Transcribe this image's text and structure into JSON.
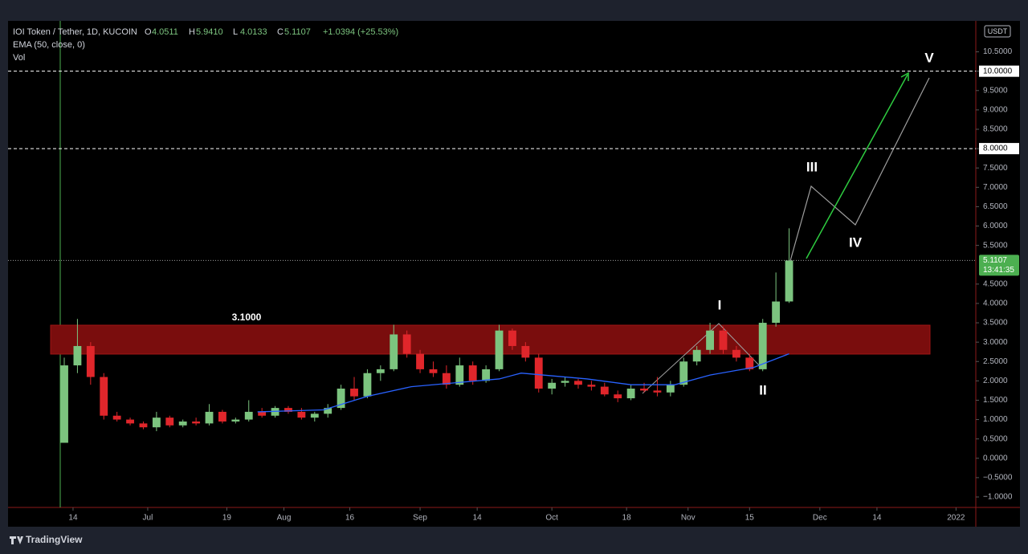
{
  "chart_data": {
    "type": "candlestick",
    "symbol": "IOI Token / Tether, 1D, KUCOIN",
    "ohlc_legend": [
      {
        "key": "O",
        "value": "4.0511"
      },
      {
        "key": "H",
        "value": "5.9410"
      },
      {
        "key": "L",
        "value": "4.0133"
      },
      {
        "key": "C",
        "value": "5.1107"
      }
    ],
    "change": "+1.0394 (+25.53%)",
    "indicators": [
      "EMA (50, close, 0)",
      "Vol"
    ],
    "currency": "USDT",
    "up_color": "#7cc47f",
    "down_color": "#e0262b",
    "x": [
      11,
      14,
      17,
      20,
      23,
      26,
      29,
      32,
      35,
      38,
      41,
      44,
      47,
      50,
      53,
      56,
      59,
      62,
      65,
      68,
      71,
      74,
      77,
      80,
      83,
      86,
      89,
      92,
      95,
      98,
      101,
      104,
      107,
      110,
      113,
      116,
      119,
      122,
      125,
      128,
      131,
      134,
      137,
      140,
      143,
      146,
      149,
      152,
      155,
      158,
      161,
      164,
      167,
      170,
      173,
      176
    ],
    "open": [
      0.4,
      2.4,
      2.9,
      2.1,
      1.1,
      1.0,
      0.9,
      0.8,
      1.05,
      0.85,
      0.95,
      0.9,
      1.2,
      0.95,
      1.0,
      1.2,
      1.1,
      1.3,
      1.2,
      1.05,
      1.15,
      1.3,
      1.8,
      1.6,
      2.2,
      2.3,
      3.2,
      2.7,
      2.3,
      2.2,
      1.9,
      2.4,
      2.0,
      2.3,
      3.3,
      2.9,
      2.6,
      1.8,
      1.95,
      2.0,
      1.9,
      1.85,
      1.65,
      1.55,
      1.8,
      1.75,
      1.7,
      1.9,
      2.5,
      2.8,
      3.3,
      2.8,
      2.6,
      2.3,
      3.5,
      4.0511
    ],
    "high": [
      2.6,
      3.6,
      3.0,
      2.2,
      1.2,
      1.05,
      0.95,
      1.2,
      1.1,
      1.0,
      1.05,
      1.4,
      1.25,
      1.05,
      1.5,
      1.3,
      1.35,
      1.35,
      1.3,
      1.2,
      1.4,
      1.9,
      2.1,
      2.3,
      2.4,
      3.45,
      3.3,
      2.8,
      2.5,
      2.4,
      2.6,
      2.5,
      2.4,
      3.45,
      3.35,
      3.0,
      2.7,
      2.05,
      2.1,
      2.05,
      2.0,
      1.95,
      1.75,
      1.9,
      1.95,
      2.1,
      2.0,
      2.6,
      2.9,
      3.5,
      3.4,
      2.9,
      2.7,
      3.6,
      4.8,
      5.941
    ],
    "low": [
      0.4,
      2.2,
      1.9,
      1.0,
      0.95,
      0.85,
      0.75,
      0.7,
      0.8,
      0.8,
      0.85,
      0.85,
      0.9,
      0.9,
      0.95,
      1.05,
      1.05,
      1.15,
      1.0,
      0.95,
      1.05,
      1.25,
      1.5,
      1.55,
      2.0,
      2.25,
      2.6,
      2.2,
      2.1,
      1.8,
      1.85,
      1.9,
      1.95,
      2.25,
      2.8,
      2.5,
      1.7,
      1.65,
      1.85,
      1.8,
      1.75,
      1.6,
      1.45,
      1.5,
      1.7,
      1.6,
      1.6,
      1.85,
      2.4,
      2.7,
      2.7,
      2.5,
      2.25,
      2.25,
      3.4,
      4.0133
    ],
    "close": [
      2.4,
      2.9,
      2.1,
      1.1,
      1.0,
      0.9,
      0.8,
      1.05,
      0.85,
      0.95,
      0.9,
      1.2,
      0.95,
      1.0,
      1.2,
      1.1,
      1.3,
      1.2,
      1.05,
      1.15,
      1.3,
      1.8,
      1.6,
      2.2,
      2.3,
      3.2,
      2.7,
      2.3,
      2.2,
      1.9,
      2.4,
      2.0,
      2.3,
      3.3,
      2.9,
      2.6,
      1.8,
      1.95,
      2.0,
      1.9,
      1.85,
      1.65,
      1.55,
      1.8,
      1.75,
      1.7,
      1.9,
      2.5,
      2.8,
      3.3,
      2.8,
      2.6,
      2.3,
      3.5,
      4.05,
      5.1107
    ],
    "ema": {
      "color": "#2962ff",
      "x": [
        55,
        70,
        80,
        90,
        100,
        110,
        115,
        130,
        140,
        150,
        158,
        168,
        176
      ],
      "values": [
        1.2,
        1.25,
        1.6,
        1.85,
        1.95,
        2.05,
        2.2,
        2.05,
        1.9,
        1.9,
        2.15,
        2.35,
        2.7
      ]
    },
    "xlim": [
      -1.8,
      218.5
    ],
    "xticks": [
      {
        "value": 13,
        "label": "14"
      },
      {
        "value": 30,
        "label": "Jul"
      },
      {
        "value": 48,
        "label": "19"
      },
      {
        "value": 61,
        "label": "Aug"
      },
      {
        "value": 76,
        "label": "16"
      },
      {
        "value": 92,
        "label": "Sep"
      },
      {
        "value": 105,
        "label": "14"
      },
      {
        "value": 122,
        "label": "Oct"
      },
      {
        "value": 139,
        "label": "18"
      },
      {
        "value": 153,
        "label": "Nov"
      },
      {
        "value": 167,
        "label": "15"
      },
      {
        "value": 183,
        "label": "Dec"
      },
      {
        "value": 196,
        "label": "14"
      },
      {
        "value": 214,
        "label": "2022"
      }
    ],
    "ylim": [
      -1.27,
      11.3
    ],
    "yticks": [
      {
        "value": -1,
        "label": "−1.0000"
      },
      {
        "value": -0.5,
        "label": "−0.5000"
      },
      {
        "value": 0,
        "label": "0.0000"
      },
      {
        "value": 0.5,
        "label": "0.5000"
      },
      {
        "value": 1,
        "label": "1.0000"
      },
      {
        "value": 1.5,
        "label": "1.5000"
      },
      {
        "value": 2,
        "label": "2.0000"
      },
      {
        "value": 2.5,
        "label": "2.5000"
      },
      {
        "value": 3,
        "label": "3.0000"
      },
      {
        "value": 3.5,
        "label": "3.5000"
      },
      {
        "value": 4,
        "label": "4.0000"
      },
      {
        "value": 4.5,
        "label": "4.5000"
      },
      {
        "value": 5.5,
        "label": "5.5000"
      },
      {
        "value": 6,
        "label": "6.0000"
      },
      {
        "value": 6.5,
        "label": "6.5000"
      },
      {
        "value": 7,
        "label": "7.0000"
      },
      {
        "value": 7.5,
        "label": "7.5000"
      },
      {
        "value": 8,
        "label": "8.0000"
      },
      {
        "value": 8.5,
        "label": "8.5000"
      },
      {
        "value": 9,
        "label": "9.0000"
      },
      {
        "value": 9.5,
        "label": "9.5000"
      },
      {
        "value": 10,
        "label": "10.0000"
      },
      {
        "value": 10.5,
        "label": "10.5000"
      }
    ],
    "highlight_levels": [
      10,
      8
    ],
    "last_price": {
      "value": 5.1107,
      "label": "5.1107"
    },
    "countdown": "13:41:35",
    "zone_label": "3.1000",
    "wave_labels": [
      "I",
      "II",
      "III",
      "IV",
      "V"
    ],
    "grid": false,
    "brand": "TradingView"
  }
}
